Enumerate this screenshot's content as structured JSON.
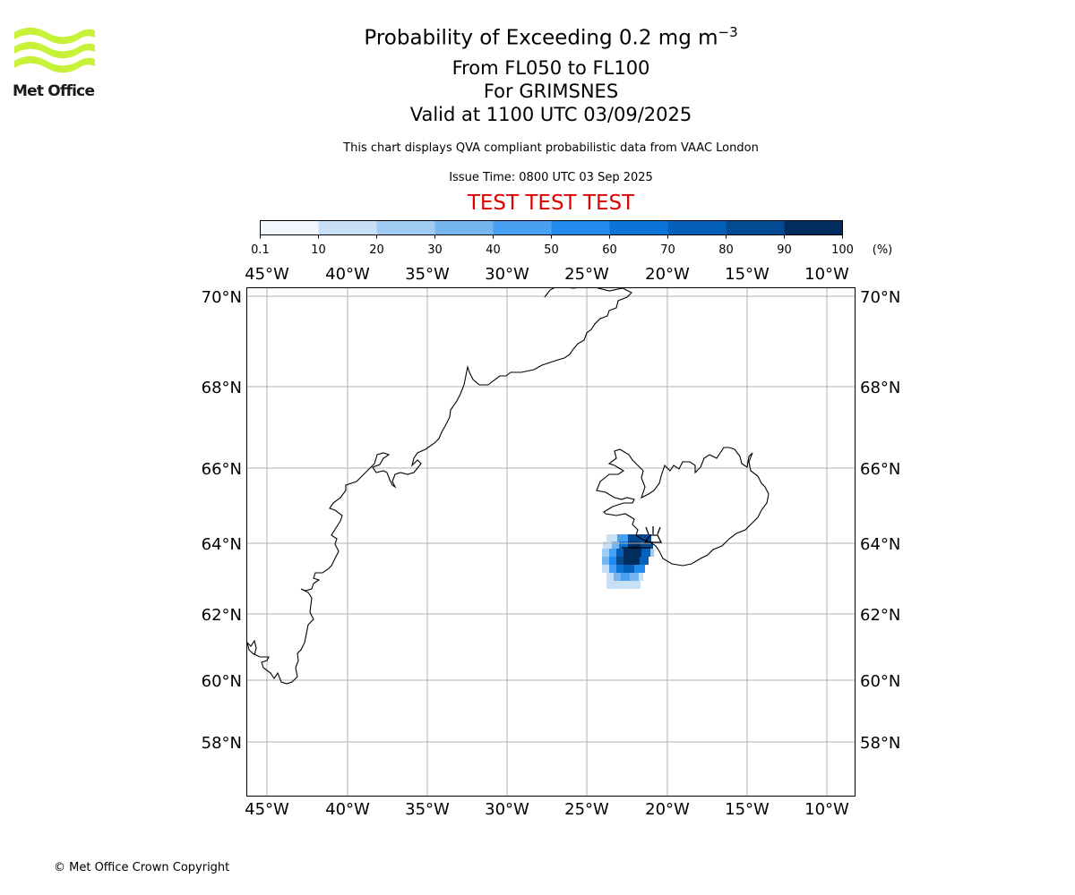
{
  "header": {
    "logo_text": "Met Office",
    "title_main": "Probability of Exceeding 0.2 mg m",
    "title_exponent": "−3",
    "levels": "From FL050 to FL100",
    "volcano": "For GRIMSNES",
    "valid": "Valid at 1100 UTC 03/09/2025",
    "description": "This chart displays QVA compliant probabilistic data from VAAC London",
    "issue_time": "Issue Time: 0800 UTC 03 Sep 2025",
    "test_banner": "TEST TEST TEST"
  },
  "colorbar": {
    "ticks": [
      "0.1",
      "10",
      "20",
      "30",
      "40",
      "50",
      "60",
      "70",
      "80",
      "90",
      "100"
    ],
    "unit": "(%)",
    "colors": [
      "#f1f7fd",
      "#c8e0f6",
      "#a0cbf2",
      "#75b5f0",
      "#48a0f2",
      "#228cee",
      "#0b74d9",
      "#0460b8",
      "#034a92",
      "#002c5e"
    ]
  },
  "map": {
    "lon_labels": [
      "45°W",
      "40°W",
      "35°W",
      "30°W",
      "25°W",
      "20°W",
      "15°W",
      "10°W"
    ],
    "lat_labels": [
      "70°N",
      "68°N",
      "66°N",
      "64°N",
      "62°N",
      "60°N",
      "58°N"
    ],
    "gridline_color": "#b0b0b0",
    "volcano_marker": "volcano-icon"
  },
  "footer": {
    "copyright": "© Met Office Crown Copyright"
  }
}
